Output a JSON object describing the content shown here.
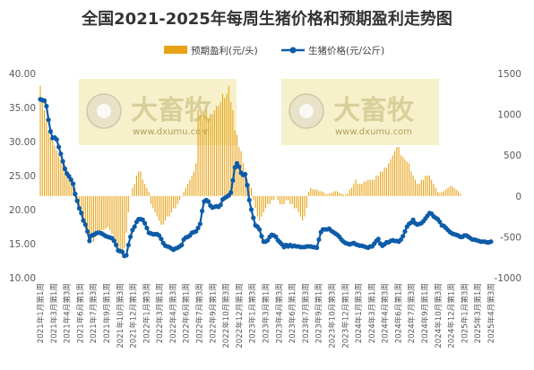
{
  "title": "全国2021-2025年每周生猪价格和预期盈利走势图",
  "watermark": {
    "brand": "大畜牧",
    "url": "www.dxumu.com",
    "color": "#f3ecb8"
  },
  "chart_data": {
    "type": "bar+line",
    "title": "全国2021-2025年每周生猪价格和预期盈利走势图",
    "legend_position": "top",
    "grid": false,
    "ylim_left": [
      10,
      40
    ],
    "yticks_left": [
      "10.00",
      "15.00",
      "20.00",
      "25.00",
      "30.00",
      "35.00",
      "40.00"
    ],
    "ylim_right": [
      -1000,
      1500
    ],
    "yticks_right": [
      "-1000",
      "-500",
      "0",
      "500",
      "1000",
      "1500"
    ],
    "x_tick_labels": [
      "2021年1月第1周",
      "2021年3月第1周",
      "2021年4月第3周",
      "2021年6月第1周",
      "2021年7月第3周",
      "2021年9月第1周",
      "2021年10月第3周",
      "2021年12月第1周",
      "2022年1月第3周",
      "2022年3月第1周",
      "2022年4月第3周",
      "2022年6月第1周",
      "2022年7月第3周",
      "2022年9月第1周",
      "2022年10月第3周",
      "2022年12月第1周",
      "2023年1月第3周",
      "2023年3月第1周",
      "2023年4月第3周",
      "2023年6月第1周",
      "2023年7月第3周",
      "2023年9月第1周",
      "2023年10月第3周",
      "2023年12月第1周",
      "2024年1月第3周",
      "2024年3月第1周",
      "2024年4月第3周",
      "2024年6月第1周",
      "2024年7月第3周",
      "2024年9月第1周",
      "2024年10月第3周",
      "2024年12月第1周",
      "2025年1月第3周",
      "2025年3月第1周",
      "2025年4月第3周"
    ],
    "series": [
      {
        "name": "预期盈利(元/头)",
        "type": "bar",
        "axis": "right",
        "color": "#e8a317",
        "values": [
          1350,
          1150,
          1050,
          950,
          800,
          720,
          680,
          620,
          560,
          500,
          450,
          400,
          340,
          280,
          240,
          200,
          150,
          100,
          -20,
          -120,
          -220,
          -330,
          -400,
          -460,
          -560,
          -520,
          -560,
          -500,
          -480,
          -450,
          -420,
          -420,
          -400,
          -380,
          -420,
          -460,
          -530,
          -580,
          -620,
          -700,
          -720,
          -640,
          -450,
          -200,
          0,
          100,
          150,
          250,
          300,
          300,
          200,
          150,
          100,
          50,
          -100,
          -150,
          -200,
          -250,
          -300,
          -350,
          -350,
          -300,
          -250,
          -250,
          -200,
          -150,
          -150,
          -100,
          -50,
          0,
          50,
          100,
          150,
          200,
          250,
          300,
          400,
          1050,
          1000,
          950,
          1000,
          1050,
          950,
          1000,
          1000,
          1050,
          1100,
          1100,
          1150,
          1250,
          1200,
          1250,
          1350,
          1150,
          1050,
          800,
          750,
          600,
          550,
          400,
          300,
          200,
          150,
          100,
          -50,
          -150,
          -250,
          -300,
          -250,
          -200,
          -150,
          -100,
          -100,
          -50,
          -50,
          0,
          -50,
          -100,
          -100,
          -100,
          -50,
          -50,
          -100,
          -100,
          -150,
          -150,
          -200,
          -250,
          -300,
          -250,
          -150,
          50,
          100,
          80,
          80,
          80,
          60,
          60,
          50,
          30,
          20,
          30,
          40,
          50,
          60,
          60,
          40,
          30,
          20,
          20,
          30,
          80,
          100,
          150,
          200,
          150,
          150,
          150,
          180,
          180,
          200,
          200,
          200,
          200,
          250,
          250,
          300,
          300,
          350,
          350,
          400,
          450,
          500,
          550,
          600,
          600,
          500,
          480,
          450,
          420,
          400,
          300,
          250,
          200,
          150,
          150,
          200,
          200,
          250,
          250,
          250,
          200,
          150,
          100,
          50,
          40,
          50,
          60,
          80,
          100,
          120,
          120,
          100,
          80,
          60,
          30
        ],
        "axis_row_top": 0,
        "axis_row_bottom": 0
      },
      {
        "name": "生猪价格(元/公斤)",
        "type": "line",
        "axis": "left",
        "color": "#0e5ca8",
        "values": [
          36.2,
          36.1,
          36.0,
          35.2,
          33.2,
          31.5,
          30.5,
          30.6,
          30.3,
          29.2,
          28.2,
          27.1,
          26.0,
          25.3,
          24.9,
          24.4,
          23.8,
          22.3,
          21.3,
          20.2,
          19.5,
          18.4,
          17.8,
          16.8,
          15.4,
          16.2,
          16.3,
          16.5,
          16.6,
          16.6,
          16.5,
          16.3,
          16.1,
          16.0,
          15.9,
          15.8,
          15.4,
          14.8,
          14.0,
          13.9,
          13.8,
          13.2,
          13.3,
          14.8,
          16.0,
          17.0,
          17.5,
          18.2,
          18.6,
          18.6,
          18.5,
          18.0,
          17.3,
          16.6,
          16.5,
          16.4,
          16.4,
          16.4,
          16.2,
          15.7,
          15.1,
          14.7,
          14.6,
          14.5,
          14.3,
          14.1,
          14.3,
          14.4,
          14.6,
          14.8,
          15.6,
          15.9,
          16.0,
          16.2,
          16.6,
          16.7,
          16.8,
          17.3,
          17.9,
          19.8,
          21.2,
          21.4,
          21.2,
          20.6,
          20.3,
          20.4,
          20.5,
          20.4,
          20.7,
          21.5,
          21.7,
          21.9,
          22.1,
          22.5,
          24.3,
          26.2,
          26.8,
          26.3,
          25.4,
          25.1,
          25.2,
          23.6,
          21.4,
          20.0,
          18.8,
          17.7,
          17.5,
          17.1,
          16.1,
          15.3,
          15.3,
          15.5,
          16.0,
          16.3,
          16.2,
          16.0,
          15.5,
          15.2,
          14.9,
          14.5,
          14.8,
          14.6,
          14.8,
          14.6,
          14.7,
          14.6,
          14.6,
          14.5,
          14.5,
          14.5,
          14.6,
          14.6,
          14.6,
          14.5,
          14.5,
          14.4,
          15.6,
          16.7,
          17.1,
          17.1,
          17.1,
          17.2,
          16.9,
          16.7,
          16.5,
          16.3,
          16.0,
          15.6,
          15.3,
          15.1,
          15.0,
          14.9,
          15.0,
          15.1,
          14.9,
          14.8,
          14.7,
          14.7,
          14.6,
          14.5,
          14.4,
          14.6,
          14.6,
          15.0,
          15.4,
          15.7,
          15.0,
          14.7,
          14.9,
          15.2,
          15.2,
          15.4,
          15.5,
          15.4,
          15.4,
          15.3,
          15.6,
          16.1,
          16.8,
          17.5,
          17.9,
          18.1,
          18.5,
          18.0,
          17.8,
          17.9,
          18.0,
          18.3,
          18.7,
          19.1,
          19.5,
          19.4,
          19.0,
          18.8,
          18.6,
          18.2,
          17.7,
          17.6,
          17.3,
          17.0,
          16.7,
          16.5,
          16.4,
          16.3,
          16.2,
          16.0,
          16.0,
          16.2,
          16.2,
          16.0,
          15.8,
          15.6,
          15.6,
          15.5,
          15.4,
          15.3,
          15.3,
          15.3,
          15.2,
          15.2,
          15.3
        ]
      }
    ]
  }
}
